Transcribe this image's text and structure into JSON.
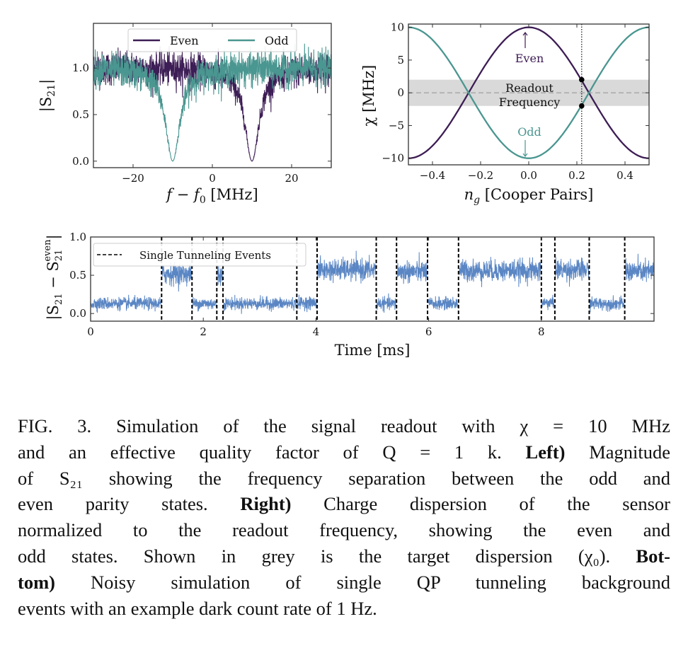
{
  "chart_data": [
    {
      "type": "line",
      "panel": "left",
      "xlabel_parts": [
        "f",
        " − ",
        "f",
        "0",
        " [MHz]"
      ],
      "ylabel_parts": [
        "|S",
        "21",
        "|"
      ],
      "xlim": [
        -30,
        30
      ],
      "ylim": [
        -0.07,
        1.48
      ],
      "xticks": [
        -20,
        0,
        20
      ],
      "xtick_labels": [
        "−20",
        "0",
        "20"
      ],
      "yticks": [
        0.0,
        0.5,
        1.0
      ],
      "ytick_labels": [
        "0.0",
        "0.5",
        "1.0"
      ],
      "legend_placement": "top-center",
      "series": [
        {
          "name": "Even",
          "color": "#3d1d55",
          "resonance_MHz": 10,
          "baseline": 1.0,
          "min": 0.0
        },
        {
          "name": "Odd",
          "color": "#4a9690",
          "resonance_MHz": -10,
          "baseline": 1.0,
          "min": 0.0
        }
      ]
    },
    {
      "type": "line",
      "panel": "right",
      "xlabel_parts": [
        "n",
        "g",
        " [Cooper Pairs]"
      ],
      "ylabel": "χ [MHz]",
      "xlim": [
        -0.5,
        0.5
      ],
      "ylim": [
        -11,
        10.5
      ],
      "xticks": [
        -0.4,
        -0.2,
        0.0,
        0.2,
        0.4
      ],
      "xtick_labels": [
        "−0.4",
        "−0.2",
        "0.0",
        "0.2",
        "0.4"
      ],
      "yticks": [
        -10,
        -5,
        0,
        5,
        10
      ],
      "ytick_labels": [
        "−10",
        "−5",
        "0",
        "5",
        "10"
      ],
      "series": [
        {
          "name": "Even",
          "color": "#3d1d55",
          "amplitude": 10,
          "form": "10·cos(2π n_g)"
        },
        {
          "name": "Odd",
          "color": "#4a9690",
          "amplitude": -10,
          "form": "−10·cos(2π n_g)"
        }
      ],
      "band": {
        "label_line1": "Readout",
        "label_line2": "Frequency",
        "range": [
          -2,
          2
        ],
        "color": "#d9d9d9"
      },
      "operating_point": {
        "x": 0.22,
        "y": [
          2,
          -2
        ]
      },
      "annotations": {
        "even": "Even",
        "odd": "Odd"
      }
    },
    {
      "type": "line",
      "panel": "bottom",
      "xlabel": "Time [ms]",
      "ylabel_parts": [
        "|S",
        "21",
        " − S",
        "21",
        "even",
        "|"
      ],
      "xlim": [
        0,
        10
      ],
      "ylim": [
        -0.1,
        1.0
      ],
      "xticks": [
        0,
        2,
        4,
        6,
        8
      ],
      "xtick_labels": [
        "0",
        "2",
        "4",
        "6",
        "8"
      ],
      "yticks": [
        0.0,
        0.5,
        1.0
      ],
      "ytick_labels": [
        "0.0",
        "0.5",
        "1.0"
      ],
      "legend": "Single Tunneling Events",
      "legend_placement": "top-left",
      "signal_color": "#5a86c4",
      "tunneling_events_ms": [
        1.26,
        1.8,
        2.24,
        2.35,
        3.66,
        4.02,
        5.07,
        5.43,
        5.98,
        6.53,
        8.0,
        8.24,
        8.85,
        9.48
      ],
      "segment_levels": [
        0.13,
        0.52,
        0.13,
        0.5,
        0.13,
        0.14,
        0.57,
        0.13,
        0.55,
        0.13,
        0.56,
        0.14,
        0.57,
        0.13,
        0.55
      ]
    }
  ],
  "caption": {
    "lines": [
      [
        {
          "t": "FIG. 3.  Simulation of the signal readout with χ = 10 MHz"
        }
      ],
      [
        {
          "t": "and an effective quality factor of Q = 1 k.  "
        },
        {
          "t": "Left)",
          "b": true
        },
        {
          "t": " Magnitude"
        }
      ],
      [
        {
          "t": "of S₂₁ showing the frequency separation between the odd and"
        }
      ],
      [
        {
          "t": "even parity states.  "
        },
        {
          "t": "Right)",
          "b": true
        },
        {
          "t": " Charge dispersion of the sensor"
        }
      ],
      [
        {
          "t": "normalized to the readout frequency, showing the even and"
        }
      ],
      [
        {
          "t": "odd states. Shown in grey is the target dispersion (χ₀).  "
        },
        {
          "t": "Bot-",
          "b": true
        }
      ],
      [
        {
          "t": "tom)",
          "b": true
        },
        {
          "t": " Noisy simulation of single QP tunneling background"
        }
      ],
      [
        {
          "t": "events with an example dark count rate of 1 Hz."
        }
      ]
    ]
  }
}
